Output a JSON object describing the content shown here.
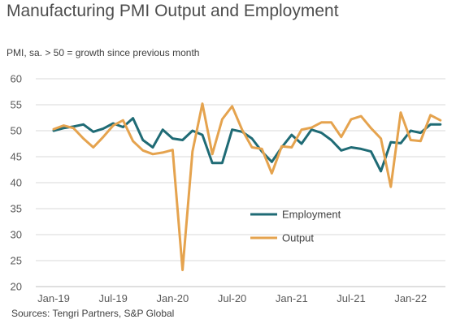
{
  "title": "Manufacturing PMI Output and Employment",
  "subtitle": "PMI, sa. > 50 = growth  since previous  month",
  "source": "Sources: Tengri  Partners,  S&P Global",
  "colors": {
    "employment": "#1f6b75",
    "output": "#e5a34e",
    "grid": "#d9d9d9",
    "axis": "#bfbfbf"
  },
  "chart_data": {
    "type": "line",
    "title": "Manufacturing PMI Output and Employment",
    "ylabel": "PMI, sa. > 50 = growth  since previous  month",
    "ylim": [
      20,
      60
    ],
    "yticks": [
      20,
      25,
      30,
      35,
      40,
      45,
      50,
      55,
      60
    ],
    "grid": true,
    "legend_position": "center-right",
    "x_start": "Jan-19",
    "x_tick_labels": [
      "Jan-19",
      "Jul-19",
      "Jan-20",
      "Jul-20",
      "Jan-21",
      "Jul-21",
      "Jan-22"
    ],
    "x": [
      "Jan-19",
      "Feb-19",
      "Mar-19",
      "Apr-19",
      "May-19",
      "Jun-19",
      "Jul-19",
      "Aug-19",
      "Sep-19",
      "Oct-19",
      "Nov-19",
      "Dec-19",
      "Jan-20",
      "Feb-20",
      "Mar-20",
      "Apr-20",
      "May-20",
      "Jun-20",
      "Jul-20",
      "Aug-20",
      "Sep-20",
      "Oct-20",
      "Nov-20",
      "Dec-20",
      "Jan-21",
      "Feb-21",
      "Mar-21",
      "Apr-21",
      "May-21",
      "Jun-21",
      "Jul-21",
      "Aug-21",
      "Sep-21",
      "Oct-21",
      "Nov-21",
      "Dec-21",
      "Jan-22",
      "Feb-22",
      "Mar-22",
      "Apr-22"
    ],
    "series": [
      {
        "name": "Employment",
        "color": "#1f6b75",
        "values": [
          50.0,
          50.5,
          50.8,
          51.2,
          49.8,
          50.4,
          51.4,
          50.7,
          52.4,
          48.2,
          46.8,
          50.2,
          48.5,
          48.2,
          50.0,
          49.2,
          43.8,
          43.8,
          50.2,
          49.8,
          48.5,
          46.0,
          44.0,
          46.8,
          49.2,
          47.5,
          50.2,
          49.6,
          48.2,
          46.2,
          46.8,
          46.5,
          46.0,
          42.2,
          47.8,
          47.6,
          50.0,
          49.6,
          51.2,
          51.2
        ]
      },
      {
        "name": "Output",
        "color": "#e5a34e",
        "values": [
          50.3,
          51.0,
          50.5,
          48.5,
          46.8,
          48.8,
          51.0,
          52.0,
          48.0,
          46.2,
          45.5,
          45.8,
          46.3,
          23.2,
          46.0,
          55.2,
          45.5,
          52.2,
          54.7,
          50.2,
          46.8,
          46.5,
          41.8,
          47.0,
          46.8,
          50.2,
          50.6,
          51.6,
          51.6,
          48.8,
          52.2,
          52.8,
          50.5,
          48.5,
          39.2,
          53.5,
          48.2,
          48.0,
          53.0,
          52.0
        ]
      }
    ]
  }
}
